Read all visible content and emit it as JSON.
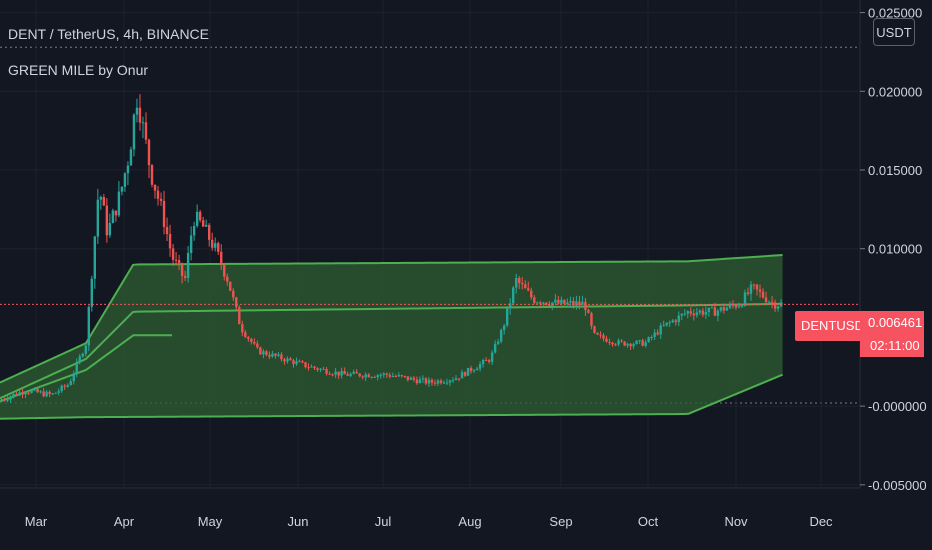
{
  "header": {
    "title": "DENT / TetherUS, 4h, BINANCE",
    "indicator": "GREEN MILE by Onur",
    "currency_button": "USDT"
  },
  "last_price": {
    "symbol": "DENTUSDT",
    "price": "0.006461",
    "countdown": "02:11:00"
  },
  "colors": {
    "background": "#131722",
    "up": "#26a69a",
    "down": "#ef5350",
    "band_line": "#4caf50",
    "band_fill": "#2e5e32",
    "price_line": "#f7525f"
  },
  "chart_data": {
    "type": "candlestick",
    "y_ticks": [
      "0.025000",
      "0.020000",
      "0.015000",
      "0.010000",
      "-0.000000",
      "-0.005000"
    ],
    "x_ticks": [
      "Mar",
      "Apr",
      "May",
      "Jun",
      "Jul",
      "Aug",
      "Sep",
      "Oct",
      "Nov",
      "Dec"
    ],
    "ylim": [
      -0.0052,
      0.0258
    ],
    "price_path": [
      [
        0.0,
        0.0004
      ],
      [
        0.03,
        0.001
      ],
      [
        0.06,
        0.0007
      ],
      [
        0.08,
        0.0014
      ],
      [
        0.1,
        0.004
      ],
      [
        0.115,
        0.014
      ],
      [
        0.125,
        0.011
      ],
      [
        0.14,
        0.0135
      ],
      [
        0.15,
        0.016
      ],
      [
        0.16,
        0.02
      ],
      [
        0.165,
        0.018
      ],
      [
        0.175,
        0.015
      ],
      [
        0.19,
        0.012
      ],
      [
        0.2,
        0.0095
      ],
      [
        0.215,
        0.008
      ],
      [
        0.225,
        0.012
      ],
      [
        0.235,
        0.0115
      ],
      [
        0.25,
        0.01
      ],
      [
        0.265,
        0.008
      ],
      [
        0.28,
        0.005
      ],
      [
        0.3,
        0.0035
      ],
      [
        0.33,
        0.003
      ],
      [
        0.36,
        0.0025
      ],
      [
        0.4,
        0.002
      ],
      [
        0.45,
        0.002
      ],
      [
        0.5,
        0.0015
      ],
      [
        0.53,
        0.0018
      ],
      [
        0.57,
        0.003
      ],
      [
        0.585,
        0.005
      ],
      [
        0.6,
        0.008
      ],
      [
        0.62,
        0.0068
      ],
      [
        0.65,
        0.0065
      ],
      [
        0.68,
        0.0065
      ],
      [
        0.69,
        0.0045
      ],
      [
        0.72,
        0.004
      ],
      [
        0.75,
        0.004
      ],
      [
        0.77,
        0.005
      ],
      [
        0.8,
        0.006
      ],
      [
        0.83,
        0.006
      ],
      [
        0.86,
        0.0065
      ],
      [
        0.875,
        0.0075
      ],
      [
        0.9,
        0.0065
      ],
      [
        0.91,
        0.0065
      ]
    ],
    "band": {
      "upper": [
        [
          0.0,
          0.0015
        ],
        [
          0.1,
          0.004
        ],
        [
          0.155,
          0.009
        ],
        [
          0.8,
          0.0092
        ],
        [
          0.91,
          0.0096
        ]
      ],
      "middle": [
        [
          0.0,
          0.0005
        ],
        [
          0.1,
          0.003
        ],
        [
          0.155,
          0.006
        ],
        [
          0.8,
          0.0064
        ],
        [
          0.91,
          0.0065
        ]
      ],
      "lower_inner": [
        [
          0.0,
          0.0003
        ],
        [
          0.1,
          0.0023
        ],
        [
          0.155,
          0.0045
        ],
        [
          0.2,
          0.0045
        ]
      ],
      "lower": [
        [
          0.0,
          -0.0008
        ],
        [
          0.1,
          -0.0007
        ],
        [
          0.8,
          -0.0005
        ],
        [
          0.91,
          0.002
        ]
      ]
    }
  }
}
